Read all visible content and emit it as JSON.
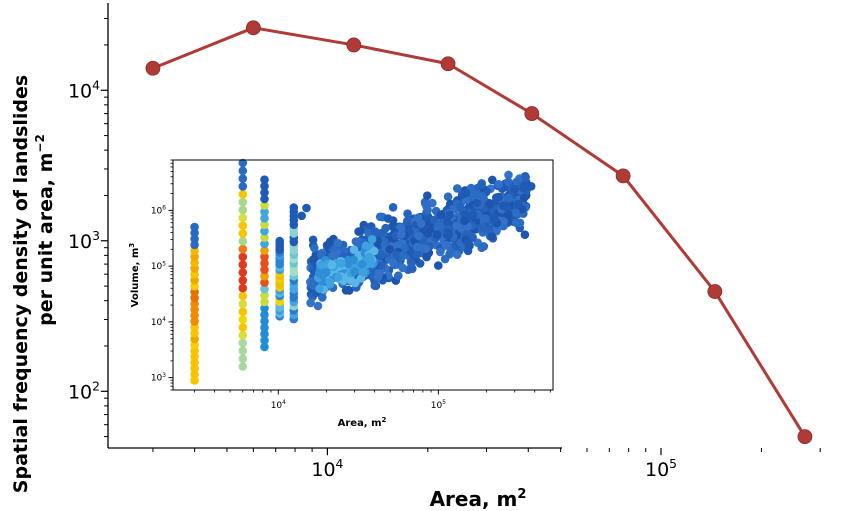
{
  "chart_data": [
    {
      "type": "line",
      "xlabel": "Area, m",
      "xlabel_sup": "2",
      "ylabel_line1": "Spatial frequency density of landslides",
      "ylabel_line2": "per unit area, m",
      "ylabel_sup": "−2",
      "x_scale": "log",
      "y_scale": "log",
      "xlim": [
        2200,
        330000
      ],
      "ylim": [
        42,
        38000
      ],
      "grid": false,
      "x_major_ticks": [
        {
          "value": 10000,
          "base": "10",
          "exp": "4"
        },
        {
          "value": 100000,
          "base": "10",
          "exp": "5"
        }
      ],
      "y_major_ticks": [
        {
          "value": 100,
          "base": "10",
          "exp": "2"
        },
        {
          "value": 1000,
          "base": "10",
          "exp": "3"
        },
        {
          "value": 10000,
          "base": "10",
          "exp": "4"
        }
      ],
      "line_color": "#b03a36",
      "marker_color": "#b03a36",
      "x": [
        3000,
        6000,
        12000,
        23000,
        41000,
        77000,
        145000,
        270000
      ],
      "y": [
        14000,
        26000,
        20000,
        15000,
        7000,
        2700,
        460,
        50
      ]
    },
    {
      "type": "scatter",
      "xlabel": "Area, m",
      "xlabel_sup": "2",
      "ylabel": "Volume, m",
      "ylabel_sup": "3",
      "x_scale": "log",
      "y_scale": "log",
      "xlim": [
        2200,
        520000
      ],
      "ylim": [
        600,
        8000000
      ],
      "grid": false,
      "x_major_ticks": [
        {
          "value": 10000,
          "base": "10",
          "exp": "4"
        },
        {
          "value": 100000,
          "base": "10",
          "exp": "5"
        }
      ],
      "y_major_ticks": [
        {
          "value": 1000,
          "base": "10",
          "exp": "3"
        },
        {
          "value": 10000,
          "base": "10",
          "exp": "4"
        },
        {
          "value": 100000,
          "base": "10",
          "exp": "5"
        },
        {
          "value": 1000000,
          "base": "10",
          "exp": "6"
        }
      ],
      "color_map": "density (yellow-red high, blue low)"
    }
  ]
}
